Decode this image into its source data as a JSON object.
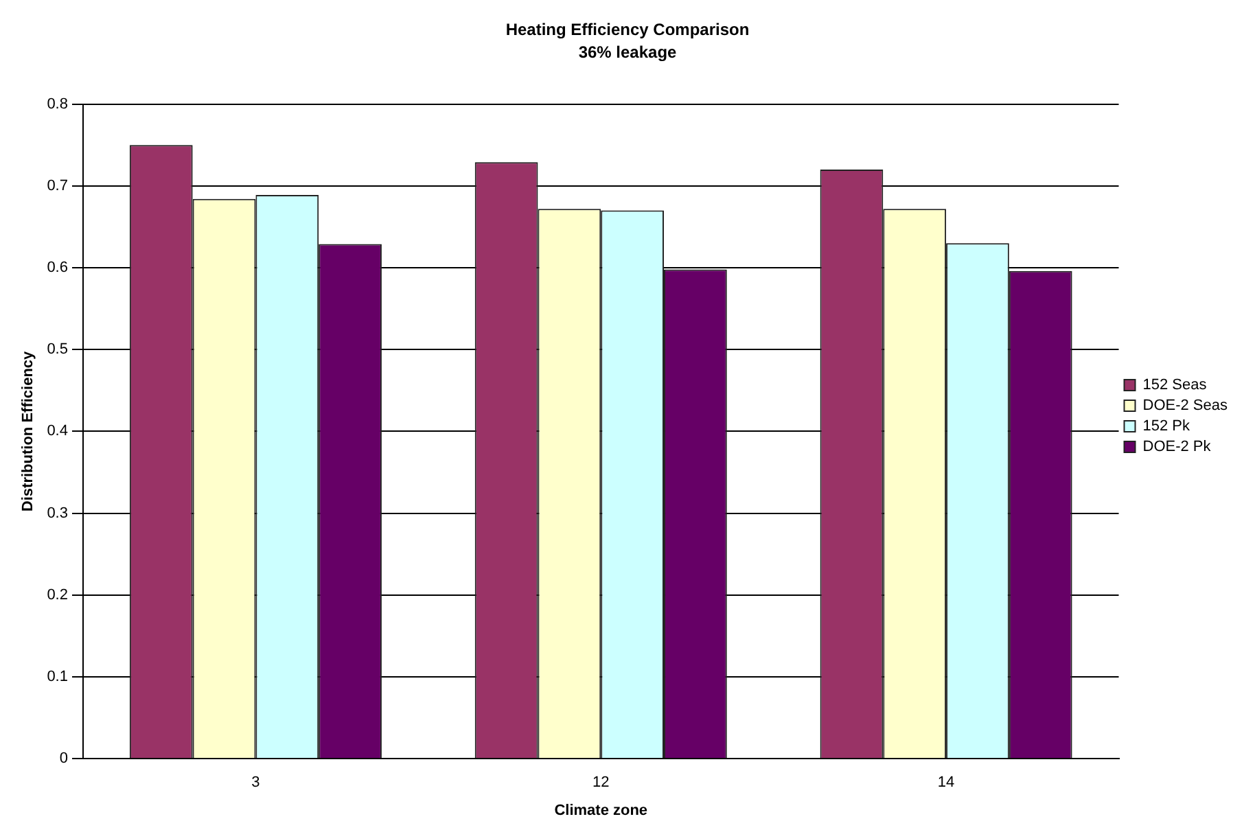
{
  "chart_data": {
    "type": "bar",
    "title": "Heating Efficiency Comparison",
    "subtitle": "36% leakage",
    "xlabel": "Climate zone",
    "ylabel": "Distribution Efficiency",
    "categories": [
      "3",
      "12",
      "14"
    ],
    "series": [
      {
        "name": "152 Seas",
        "color": "#993366",
        "values": [
          0.75,
          0.729,
          0.72
        ]
      },
      {
        "name": "DOE-2 Seas",
        "color": "#ffffcc",
        "values": [
          0.684,
          0.672,
          0.672
        ]
      },
      {
        "name": "152 Pk",
        "color": "#ccffff",
        "values": [
          0.689,
          0.67,
          0.63
        ]
      },
      {
        "name": "DOE-2 Pk",
        "color": "#660066",
        "values": [
          0.629,
          0.598,
          0.596
        ]
      }
    ],
    "ylim": [
      0,
      0.8
    ],
    "yticks": [
      0,
      0.1,
      0.2,
      0.3,
      0.4,
      0.5,
      0.6,
      0.7,
      0.8
    ],
    "grid": "y",
    "legend": "right"
  }
}
